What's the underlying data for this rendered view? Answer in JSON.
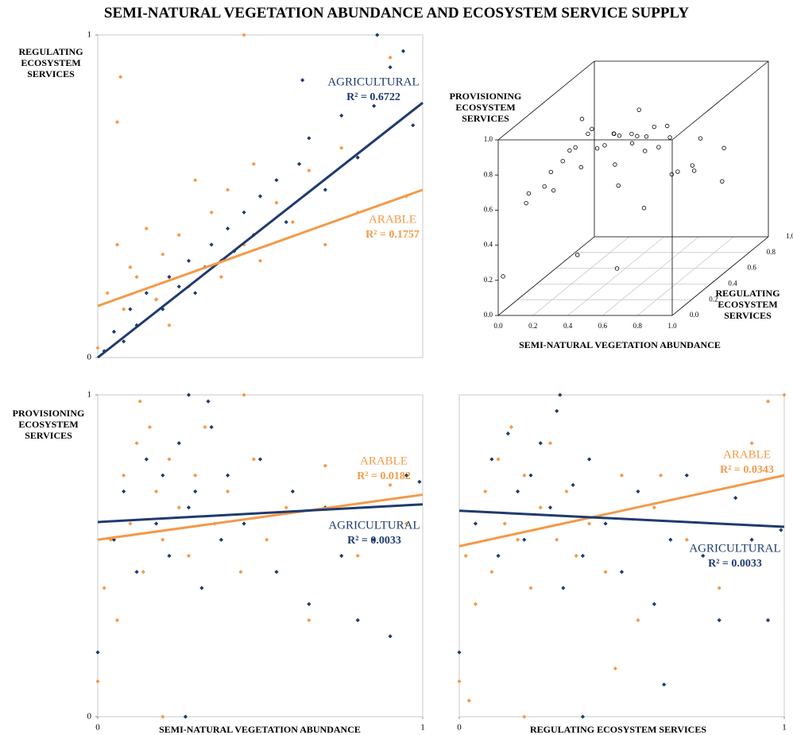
{
  "title": "SEMI-NATURAL VEGETATION ABUNDANCE AND ECOSYSTEM SERVICE SUPPLY",
  "chart_data": [
    {
      "type": "scatter",
      "ylabel": "REGULATING ECOSYSTEM SERVICES",
      "xlim": [
        0,
        1
      ],
      "ylim": [
        0,
        1
      ],
      "yticks": [
        0,
        1
      ],
      "series": [
        {
          "name": "AGRICULTURAL",
          "r2_label": "R² = 0.6722",
          "color": "#1f3b6e",
          "trend": {
            "intercept": 0.0,
            "slope": 0.79
          },
          "x": [
            0.02,
            0.05,
            0.08,
            0.1,
            0.12,
            0.15,
            0.18,
            0.2,
            0.22,
            0.25,
            0.28,
            0.3,
            0.33,
            0.35,
            0.38,
            0.4,
            0.42,
            0.45,
            0.48,
            0.5,
            0.55,
            0.58,
            0.62,
            0.65,
            0.7,
            0.75,
            0.8,
            0.85,
            0.9,
            0.94,
            0.97,
            0.86,
            0.63
          ],
          "y": [
            0.02,
            0.08,
            0.05,
            0.15,
            0.1,
            0.2,
            0.18,
            0.15,
            0.25,
            0.22,
            0.3,
            0.2,
            0.28,
            0.35,
            0.3,
            0.4,
            0.33,
            0.45,
            0.38,
            0.5,
            0.55,
            0.42,
            0.6,
            0.68,
            0.52,
            0.75,
            0.62,
            0.78,
            0.9,
            0.95,
            0.72,
            1.0,
            0.86
          ]
        },
        {
          "name": "ARABLE",
          "r2_label": "R² = 0.1757",
          "color": "#f39a4a",
          "trend": {
            "intercept": 0.16,
            "slope": 0.36
          },
          "x": [
            0.0,
            0.03,
            0.06,
            0.08,
            0.1,
            0.12,
            0.15,
            0.18,
            0.2,
            0.22,
            0.25,
            0.28,
            0.3,
            0.35,
            0.38,
            0.4,
            0.45,
            0.48,
            0.5,
            0.55,
            0.6,
            0.65,
            0.7,
            0.75,
            0.8,
            0.9,
            0.95,
            0.07,
            0.06,
            0.45
          ],
          "y": [
            0.03,
            0.2,
            0.35,
            0.15,
            0.28,
            0.25,
            0.4,
            0.18,
            0.32,
            0.1,
            0.38,
            0.22,
            0.55,
            0.45,
            0.25,
            0.52,
            0.35,
            0.6,
            0.3,
            0.48,
            0.42,
            0.58,
            0.35,
            0.65,
            0.45,
            0.93,
            0.5,
            0.87,
            0.73,
            1.0
          ]
        }
      ]
    },
    {
      "type": "scatter3d",
      "zlabel": "PROVISIONING ECOSYSTEM SERVICES",
      "xlabel": "SEMI-NATURAL  VEGETATION  ABUNDANCE",
      "ylabel": "REGULATING ECOSYSTEM SERVICES",
      "xlim": [
        0,
        1
      ],
      "ylim": [
        0,
        1
      ],
      "zlim": [
        0,
        1
      ],
      "xticks": [
        {
          "value": 0,
          "label": "0.0"
        },
        {
          "value": 0.2,
          "label": "0.2"
        },
        {
          "value": 0.4,
          "label": "0.4"
        },
        {
          "value": 0.6,
          "label": "0.6"
        },
        {
          "value": 0.8,
          "label": "0.8"
        },
        {
          "value": 1,
          "label": "1.0"
        }
      ],
      "yticks": [
        {
          "value": 0,
          "label": "0.0"
        },
        {
          "value": 0.2,
          "label": "0.2"
        },
        {
          "value": 0.4,
          "label": "0.4"
        },
        {
          "value": 0.6,
          "label": "0.6"
        },
        {
          "value": 0.8,
          "label": "0.8"
        },
        {
          "value": 1,
          "label": "1.0"
        }
      ],
      "zticks": [
        {
          "value": 0,
          "label": "0.0"
        },
        {
          "value": 0.2,
          "label": "0.2"
        },
        {
          "value": 0.4,
          "label": "0.4"
        },
        {
          "value": 0.6,
          "label": "0.6"
        },
        {
          "value": 0.8,
          "label": "0.8"
        },
        {
          "value": 1,
          "label": "1.0"
        }
      ],
      "series": [
        {
          "color": "#000000",
          "x": [
            0.0,
            0.05,
            0.1,
            0.12,
            0.15,
            0.18,
            0.2,
            0.22,
            0.25,
            0.28,
            0.3,
            0.32,
            0.35,
            0.38,
            0.4,
            0.42,
            0.45,
            0.48,
            0.5,
            0.52,
            0.55,
            0.58,
            0.6,
            0.62,
            0.65,
            0.7,
            0.72,
            0.75,
            0.8,
            0.85,
            0.9,
            0.95,
            0.3,
            0.5,
            0.15,
            0.4,
            0.6,
            0.25,
            0.7,
            0.45
          ],
          "y": [
            0.05,
            0.2,
            0.3,
            0.1,
            0.4,
            0.25,
            0.5,
            0.15,
            0.35,
            0.6,
            0.2,
            0.45,
            0.3,
            0.7,
            0.25,
            0.5,
            0.4,
            0.8,
            0.3,
            0.6,
            0.45,
            0.2,
            0.7,
            0.5,
            0.35,
            0.6,
            0.8,
            0.4,
            0.9,
            0.5,
            0.7,
            0.3,
            0.85,
            0.9,
            0.6,
            0.1,
            0.15,
            0.75,
            0.25,
            0.65
          ],
          "z": [
            0.2,
            0.55,
            0.6,
            0.65,
            0.7,
            0.6,
            0.62,
            0.75,
            0.8,
            0.7,
            0.85,
            0.75,
            0.9,
            0.72,
            0.95,
            0.8,
            0.68,
            0.6,
            0.9,
            0.75,
            0.82,
            0.65,
            0.7,
            0.85,
            0.78,
            0.55,
            0.65,
            0.9,
            0.55,
            0.6,
            0.45,
            0.72,
            0.6,
            0.4,
            0.85,
            0.3,
            0.2,
            0.7,
            0.5,
            0.88
          ]
        }
      ]
    },
    {
      "type": "scatter",
      "ylabel": "PROVISIONING ECOSYSTEM SERVICES",
      "xlabel": "SEMI-NATURAL VEGETATION ABUNDANCE",
      "xlim": [
        0,
        1
      ],
      "ylim": [
        0,
        1
      ],
      "xticks": [
        0,
        1
      ],
      "yticks": [
        0,
        1
      ],
      "series": [
        {
          "name": "ARABLE",
          "r2_label": "R² = 0.0182",
          "color": "#f39a4a",
          "trend": {
            "intercept": 0.55,
            "slope": 0.14
          },
          "x": [
            0.0,
            0.02,
            0.04,
            0.06,
            0.08,
            0.1,
            0.12,
            0.14,
            0.16,
            0.18,
            0.2,
            0.22,
            0.25,
            0.28,
            0.3,
            0.33,
            0.36,
            0.4,
            0.44,
            0.48,
            0.52,
            0.58,
            0.65,
            0.7,
            0.8,
            0.9,
            0.95,
            0.13,
            0.2,
            0.45
          ],
          "y": [
            0.11,
            0.4,
            0.55,
            0.3,
            0.75,
            0.6,
            0.85,
            0.45,
            0.9,
            0.7,
            0.55,
            0.8,
            0.65,
            0.5,
            0.75,
            0.9,
            0.6,
            0.7,
            0.45,
            0.8,
            0.55,
            0.65,
            0.3,
            0.78,
            0.5,
            0.72,
            0.6,
            0.98,
            0.0,
            1.0
          ]
        },
        {
          "name": "AGRICULTURAL",
          "r2_label": "R² = 0.0033",
          "color": "#1f3b6e",
          "trend": {
            "intercept": 0.605,
            "slope": 0.055
          },
          "x": [
            0.0,
            0.05,
            0.08,
            0.12,
            0.15,
            0.18,
            0.2,
            0.22,
            0.25,
            0.28,
            0.3,
            0.32,
            0.35,
            0.38,
            0.4,
            0.45,
            0.5,
            0.55,
            0.6,
            0.65,
            0.7,
            0.75,
            0.8,
            0.85,
            0.9,
            0.95,
            0.99,
            0.28,
            0.34,
            0.27
          ],
          "y": [
            0.2,
            0.55,
            0.7,
            0.45,
            0.8,
            0.6,
            0.75,
            0.5,
            0.85,
            0.65,
            0.7,
            0.4,
            0.9,
            0.55,
            0.75,
            0.6,
            0.8,
            0.45,
            0.7,
            0.35,
            0.65,
            0.5,
            0.3,
            0.55,
            0.25,
            0.75,
            0.73,
            1.0,
            0.98,
            0.0
          ]
        }
      ]
    },
    {
      "type": "scatter",
      "xlabel": "REGULATING ECOSYSTEM SERVICES",
      "xlim": [
        0,
        1
      ],
      "ylim": [
        0,
        1
      ],
      "xticks": [
        0,
        1
      ],
      "series": [
        {
          "name": "ARABLE",
          "r2_label": "R² = 0.0343",
          "color": "#f39a4a",
          "trend": {
            "intercept": 0.53,
            "slope": 0.22
          },
          "x": [
            0.0,
            0.02,
            0.05,
            0.08,
            0.1,
            0.12,
            0.14,
            0.16,
            0.18,
            0.2,
            0.22,
            0.25,
            0.28,
            0.3,
            0.33,
            0.36,
            0.4,
            0.45,
            0.5,
            0.55,
            0.6,
            0.7,
            0.8,
            0.9,
            0.95,
            1.0,
            0.03,
            0.2,
            0.48,
            0.62
          ],
          "y": [
            0.11,
            0.5,
            0.35,
            0.7,
            0.45,
            0.8,
            0.6,
            0.9,
            0.55,
            0.75,
            0.4,
            0.65,
            0.85,
            0.55,
            0.7,
            0.5,
            0.6,
            0.45,
            0.75,
            0.3,
            0.65,
            0.55,
            0.4,
            0.85,
            0.98,
            1.0,
            0.05,
            0.0,
            0.15,
            0.75
          ]
        },
        {
          "name": "AGRICULTURAL",
          "r2_label": "R² = 0.0033",
          "color": "#1f3b6e",
          "trend": {
            "intercept": 0.64,
            "slope": -0.05
          },
          "x": [
            0.0,
            0.05,
            0.1,
            0.12,
            0.15,
            0.18,
            0.2,
            0.22,
            0.25,
            0.28,
            0.3,
            0.32,
            0.35,
            0.38,
            0.4,
            0.45,
            0.5,
            0.55,
            0.6,
            0.65,
            0.7,
            0.75,
            0.8,
            0.85,
            0.9,
            0.95,
            0.99,
            0.31,
            0.38,
            0.63
          ],
          "y": [
            0.2,
            0.6,
            0.8,
            0.5,
            0.88,
            0.7,
            0.55,
            0.75,
            0.85,
            0.65,
            0.95,
            0.4,
            0.72,
            0.5,
            0.8,
            0.6,
            0.45,
            0.7,
            0.35,
            0.55,
            0.75,
            0.5,
            0.3,
            0.68,
            0.55,
            0.3,
            0.58,
            1.0,
            0.0,
            0.1
          ]
        }
      ]
    }
  ]
}
